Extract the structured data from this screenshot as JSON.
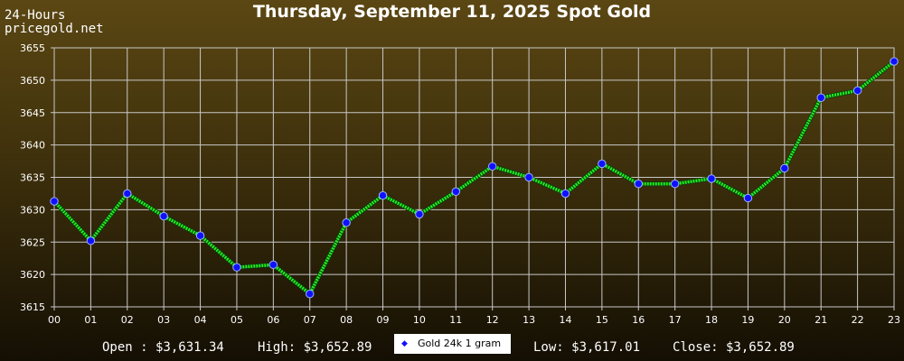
{
  "header": {
    "period_label": "24-Hours",
    "source_label": "pricegold.net",
    "title": "Thursday, September 11, 2025 Spot Gold"
  },
  "stats": {
    "open": "Open : $3,631.34",
    "high": "High: $3,652.89",
    "low": "Low: $3,617.01",
    "close": "Close: $3,652.89"
  },
  "legend": {
    "label": "Gold 24k 1 gram"
  },
  "colors": {
    "line": "#22ee22",
    "marker": "#1010ff",
    "grid": "#c8c8c8"
  },
  "chart_data": {
    "type": "line",
    "title": "Thursday, September 11, 2025 Spot Gold",
    "xlabel": "",
    "ylabel": "",
    "categories": [
      "00",
      "01",
      "02",
      "03",
      "04",
      "05",
      "06",
      "07",
      "08",
      "09",
      "10",
      "11",
      "12",
      "13",
      "14",
      "15",
      "16",
      "17",
      "18",
      "19",
      "20",
      "21",
      "22",
      "23"
    ],
    "ylim": [
      3615,
      3655
    ],
    "yticks": [
      3615,
      3620,
      3625,
      3630,
      3635,
      3640,
      3645,
      3650,
      3655
    ],
    "grid": true,
    "legend_position": "bottom-center",
    "series": [
      {
        "name": "Gold 24k 1 gram",
        "values": [
          3631.3,
          3625.2,
          3632.5,
          3629.0,
          3626.0,
          3621.1,
          3621.5,
          3617.0,
          3628.0,
          3632.2,
          3629.3,
          3632.8,
          3636.7,
          3635.0,
          3632.5,
          3637.1,
          3634.0,
          3634.0,
          3634.8,
          3631.8,
          3636.4,
          3647.3,
          3648.4,
          3652.9
        ]
      }
    ]
  }
}
